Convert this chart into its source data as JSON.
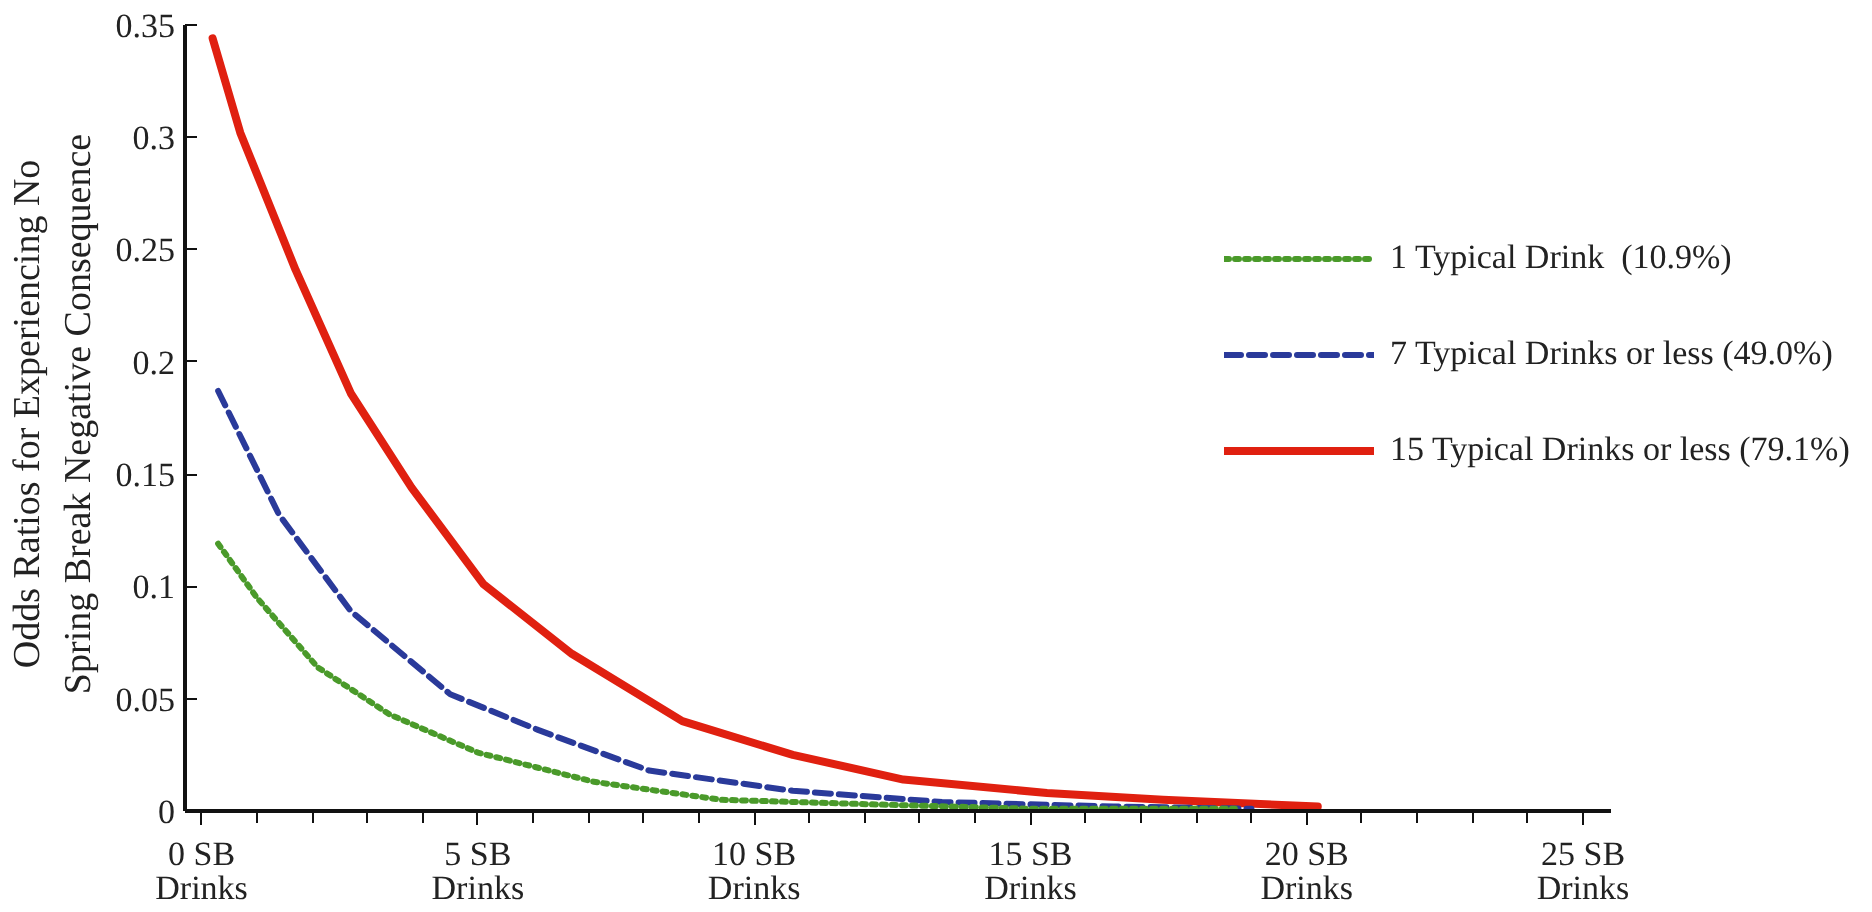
{
  "chart_data": {
    "type": "line",
    "ylabel": "Odds Ratios for Experiencing No\nSpring Break Negative Consequence",
    "xlim": [
      -0.3,
      25.5
    ],
    "ylim": [
      0,
      0.35
    ],
    "xticks": [
      {
        "value": 0,
        "label": "0 SB\nDrinks"
      },
      {
        "value": 5,
        "label": "5 SB\nDrinks"
      },
      {
        "value": 10,
        "label": "10 SB\nDrinks"
      },
      {
        "value": 15,
        "label": "15 SB\nDrinks"
      },
      {
        "value": 20,
        "label": "20 SB\nDrinks"
      },
      {
        "value": 25,
        "label": "25 SB\nDrinks"
      }
    ],
    "yticks": [
      0,
      0.05,
      0.1,
      0.15,
      0.2,
      0.25,
      0.3,
      0.35
    ],
    "grid": false,
    "legend": "right",
    "marker": "none",
    "series": [
      {
        "name": "1 Typical Drink  (10.9%)",
        "color": "#4a9a2a",
        "line_style": "dotted",
        "x": [
          0.3,
          1.0,
          2.1,
          3.4,
          5.0,
          7.1,
          9.4,
          12.1,
          15.0,
          18.7
        ],
        "values": [
          0.119,
          0.095,
          0.064,
          0.043,
          0.026,
          0.013,
          0.005,
          0.003,
          0.001,
          0.001
        ]
      },
      {
        "name": "7 Typical Drinks or less (49.0%)",
        "color": "#2a3a9a",
        "line_style": "dashed",
        "x": [
          0.3,
          1.4,
          2.7,
          4.5,
          6.1,
          8.1,
          10.7,
          13.4,
          16.5,
          19.0
        ],
        "values": [
          0.187,
          0.132,
          0.089,
          0.052,
          0.036,
          0.018,
          0.009,
          0.004,
          0.002,
          0.001
        ]
      },
      {
        "name": "15 Typical Drinks or less (79.1%)",
        "color": "#e02010",
        "line_style": "solid",
        "x": [
          0.2,
          0.7,
          1.7,
          2.7,
          3.8,
          5.1,
          6.7,
          8.7,
          10.7,
          12.7,
          15.3,
          17.4,
          20.2
        ],
        "values": [
          0.344,
          0.302,
          0.241,
          0.186,
          0.144,
          0.101,
          0.07,
          0.04,
          0.025,
          0.014,
          0.008,
          0.005,
          0.002
        ]
      }
    ]
  }
}
